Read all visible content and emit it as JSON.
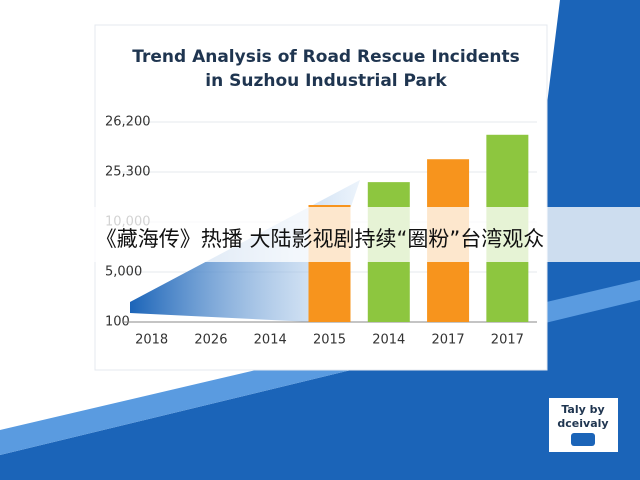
{
  "chart_data": {
    "type": "bar",
    "title": [
      "Trend Analysis of Road Rescue Incidents",
      "in Suzhou Industrial Park"
    ],
    "categories": [
      "2018",
      "2026",
      "2014",
      "2015",
      "2014",
      "2017",
      "2017"
    ],
    "values": [
      null,
      null,
      null,
      15200,
      22200,
      25530,
      25970
    ],
    "colors": [
      null,
      null,
      null,
      "#f7941d",
      "#8dc63f",
      "#f7941d",
      "#8dc63f"
    ],
    "ylim": [
      100,
      26200
    ],
    "yticks": [
      100,
      {
        "value": 5000,
        "label": "5,000"
      },
      {
        "value": 10000,
        "label": "10,000"
      },
      {
        "value": 25300,
        "label": "25,300"
      },
      {
        "value": 26200,
        "label": "26,200"
      }
    ],
    "grid": true
  },
  "caption": "《藏海传》热播 大陆影视剧持续“圈粉”台湾观众",
  "logo": {
    "line1": "Taly by",
    "line2": "dceivaly"
  }
}
